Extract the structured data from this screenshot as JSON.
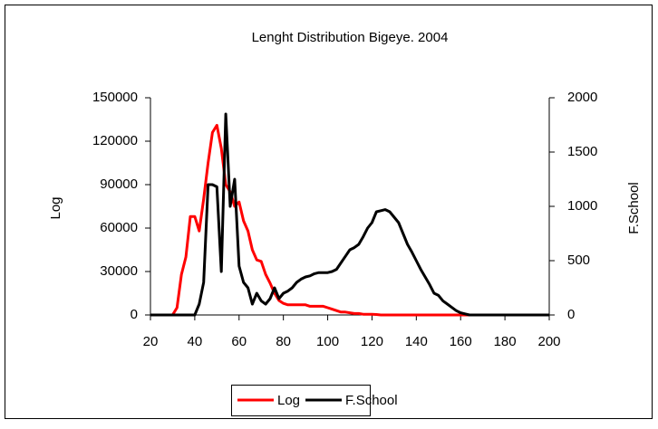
{
  "chart_data": {
    "type": "line",
    "title": "Lenght Distribution Bigeye. 2004",
    "y_label": "Log",
    "y2_label": "F.School",
    "x": [
      20,
      22,
      24,
      26,
      28,
      30,
      32,
      34,
      36,
      38,
      40,
      42,
      44,
      46,
      48,
      50,
      52,
      54,
      56,
      58,
      60,
      62,
      64,
      66,
      68,
      70,
      72,
      74,
      76,
      78,
      80,
      82,
      84,
      86,
      88,
      90,
      92,
      94,
      96,
      98,
      100,
      102,
      104,
      106,
      108,
      110,
      112,
      114,
      116,
      118,
      120,
      122,
      124,
      126,
      128,
      130,
      132,
      134,
      136,
      138,
      140,
      142,
      144,
      146,
      148,
      150,
      152,
      154,
      156,
      158,
      160,
      162,
      164,
      166,
      168,
      170,
      172,
      174,
      176,
      178,
      180,
      182,
      184,
      186,
      188,
      190,
      192,
      194,
      196,
      198,
      200
    ],
    "xlim": [
      20,
      200
    ],
    "xticks": [
      20,
      40,
      60,
      80,
      100,
      120,
      140,
      160,
      180,
      200
    ],
    "ylim": [
      0,
      150000
    ],
    "yticks": [
      0,
      30000,
      60000,
      90000,
      120000,
      150000
    ],
    "y2lim": [
      0,
      2000
    ],
    "y2ticks": [
      0,
      500,
      1000,
      1500,
      2000
    ],
    "legend": "bottom",
    "series": [
      {
        "name": "Log",
        "color": "#ff0000",
        "values": [
          0,
          0,
          0,
          0,
          0,
          0,
          5000,
          28000,
          40000,
          68000,
          68000,
          58000,
          80000,
          105000,
          126000,
          131000,
          115000,
          90000,
          85000,
          75000,
          78000,
          65000,
          58000,
          45000,
          38000,
          37000,
          28000,
          22000,
          15000,
          10000,
          8000,
          7000,
          7000,
          7000,
          7000,
          7000,
          6000,
          6000,
          6000,
          6000,
          5000,
          4000,
          3000,
          2000,
          2000,
          1500,
          1000,
          1000,
          500,
          500,
          500,
          300,
          0,
          0,
          0,
          0,
          0,
          0,
          0,
          0,
          0,
          0,
          0,
          0,
          0,
          0,
          0,
          0,
          0,
          0,
          0,
          0,
          0,
          0,
          0,
          0,
          0,
          0,
          0,
          0,
          0,
          0,
          0,
          0,
          0,
          0,
          0,
          0,
          0,
          0,
          0
        ]
      },
      {
        "name": "F.School",
        "color": "#000000",
        "axis": "y2",
        "values": [
          0,
          0,
          0,
          0,
          0,
          0,
          0,
          0,
          0,
          0,
          0,
          100,
          300,
          1200,
          1200,
          1180,
          400,
          1850,
          1000,
          1250,
          450,
          300,
          250,
          100,
          200,
          130,
          100,
          150,
          250,
          150,
          200,
          220,
          250,
          300,
          330,
          350,
          360,
          380,
          390,
          390,
          390,
          400,
          420,
          480,
          540,
          600,
          620,
          650,
          720,
          800,
          850,
          950,
          960,
          970,
          950,
          900,
          850,
          750,
          650,
          580,
          500,
          420,
          350,
          280,
          200,
          180,
          130,
          100,
          70,
          40,
          20,
          10,
          0,
          0,
          0,
          0,
          0,
          0,
          0,
          0,
          0,
          0,
          0,
          0,
          0,
          0,
          0,
          0,
          0,
          0,
          0
        ]
      }
    ]
  }
}
